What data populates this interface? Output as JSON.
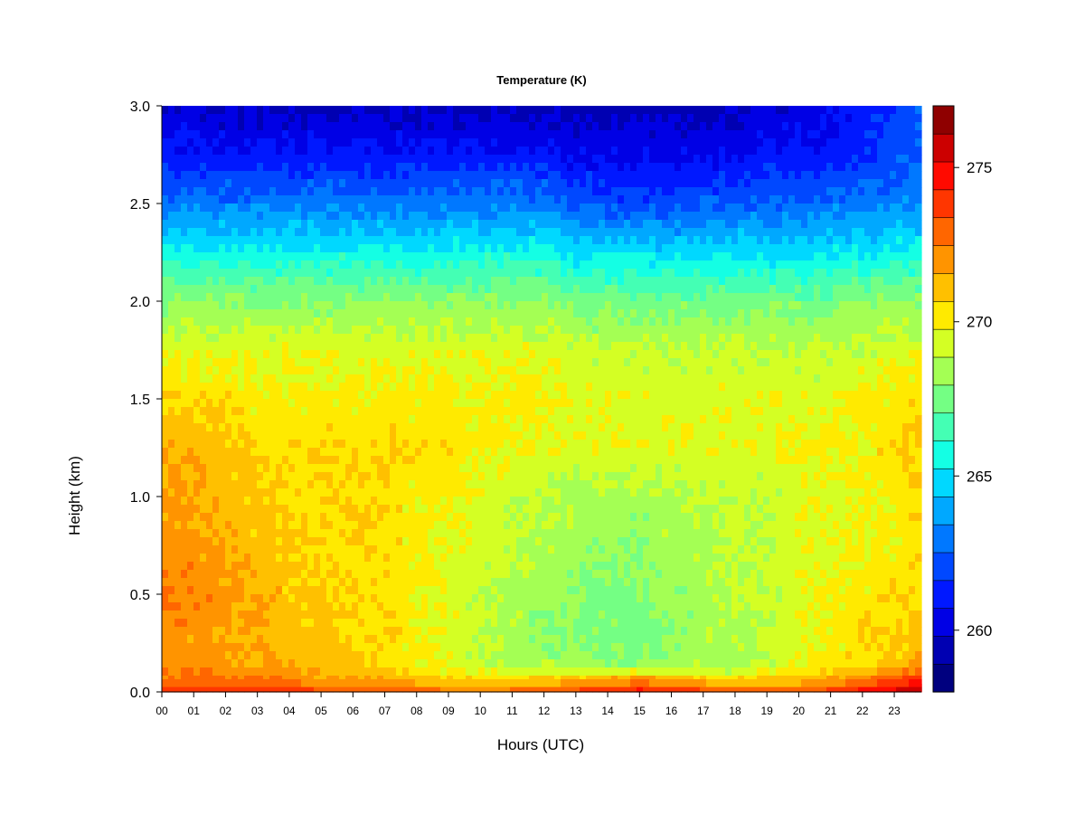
{
  "chart_data": {
    "type": "heatmap",
    "title": "Temperature (K)",
    "xlabel": "Hours (UTC)",
    "ylabel": "Height (km)",
    "x_ticks": [
      "00",
      "01",
      "02",
      "03",
      "04",
      "05",
      "06",
      "07",
      "08",
      "09",
      "10",
      "11",
      "12",
      "13",
      "14",
      "15",
      "16",
      "17",
      "18",
      "19",
      "20",
      "21",
      "22",
      "23"
    ],
    "xlim": [
      0,
      23.85
    ],
    "y_ticks": [
      "0.0",
      "0.5",
      "1.0",
      "1.5",
      "2.0",
      "2.5",
      "3.0"
    ],
    "ylim": [
      0,
      3
    ],
    "colorbar": {
      "ticks": [
        "260",
        "265",
        "270",
        "275"
      ],
      "tick_values": [
        260,
        265,
        270,
        275
      ],
      "range": [
        258,
        277
      ],
      "colors": [
        "#00007f",
        "#0000b2",
        "#0000e5",
        "#0018ff",
        "#0048ff",
        "#0078ff",
        "#00a8ff",
        "#00d8ff",
        "#14ffe4",
        "#44ffb4",
        "#74ff84",
        "#a4ff54",
        "#d4ff24",
        "#ffea00",
        "#ffc000",
        "#ff9400",
        "#ff6600",
        "#ff3600",
        "#ff0a00",
        "#cc0000",
        "#8f0000"
      ]
    },
    "times": [
      0,
      1,
      2,
      3,
      4,
      5,
      6,
      7,
      8,
      9,
      10,
      11,
      12,
      13,
      14,
      15,
      16,
      17,
      18,
      19,
      20,
      21,
      22,
      23,
      23.85
    ],
    "heights": [
      0,
      0.03,
      0.08,
      0.15,
      0.3,
      0.5,
      0.75,
      1.0,
      1.25,
      1.5,
      1.75,
      2.0,
      2.25,
      2.5,
      2.75,
      3.0
    ],
    "values": [
      [
        275.5,
        275.5,
        275.5,
        275.5,
        275.0,
        275.0,
        274.5,
        274.0,
        274.5,
        274.0,
        274.0,
        274.5,
        274.5,
        275.0,
        275.5,
        276.0,
        275.5,
        275.0,
        275.0,
        274.5,
        274.5,
        275.5,
        276.0,
        276.5,
        276.5
      ],
      [
        273.5,
        273.5,
        273.5,
        273.0,
        273.0,
        272.5,
        272.5,
        272.0,
        272.0,
        271.5,
        271.5,
        271.5,
        272.0,
        272.5,
        273.0,
        273.5,
        273.0,
        272.5,
        272.0,
        272.0,
        272.0,
        272.5,
        273.5,
        274.5,
        275.0
      ],
      [
        272.5,
        272.5,
        272.5,
        272.0,
        272.0,
        271.5,
        271.5,
        271.0,
        270.5,
        270.0,
        270.0,
        269.5,
        270.0,
        270.0,
        270.0,
        270.5,
        270.0,
        269.5,
        269.5,
        270.0,
        270.5,
        271.0,
        271.5,
        272.5,
        273.5
      ],
      [
        272.0,
        272.0,
        272.0,
        271.5,
        271.5,
        271.0,
        271.0,
        270.5,
        270.0,
        269.5,
        269.0,
        268.5,
        268.5,
        268.0,
        268.0,
        268.0,
        268.0,
        268.5,
        268.5,
        269.0,
        269.5,
        270.0,
        270.5,
        271.0,
        272.0
      ],
      [
        272.0,
        272.0,
        271.5,
        271.5,
        271.0,
        271.0,
        270.5,
        270.5,
        270.0,
        269.5,
        269.0,
        268.5,
        268.0,
        268.0,
        267.5,
        267.5,
        268.0,
        268.5,
        268.5,
        269.0,
        269.5,
        270.0,
        270.5,
        270.5,
        271.0
      ],
      [
        272.5,
        272.5,
        272.0,
        271.5,
        271.0,
        271.0,
        270.5,
        270.5,
        270.0,
        269.5,
        269.0,
        268.5,
        268.5,
        268.0,
        267.5,
        268.0,
        268.0,
        268.5,
        269.0,
        269.0,
        269.5,
        270.0,
        270.0,
        270.5,
        270.5
      ],
      [
        272.0,
        272.0,
        271.5,
        271.0,
        271.0,
        270.5,
        270.5,
        270.5,
        270.0,
        269.5,
        269.5,
        269.0,
        268.5,
        268.5,
        268.0,
        268.0,
        268.5,
        268.5,
        269.0,
        269.0,
        269.5,
        269.5,
        270.0,
        270.0,
        270.5
      ],
      [
        272.0,
        271.5,
        271.0,
        271.0,
        270.5,
        270.5,
        270.5,
        270.5,
        270.0,
        270.0,
        269.5,
        269.0,
        269.0,
        268.5,
        268.5,
        268.5,
        268.5,
        269.0,
        269.0,
        269.0,
        269.5,
        269.5,
        270.0,
        270.0,
        270.5
      ],
      [
        271.5,
        271.5,
        271.0,
        270.5,
        270.5,
        270.5,
        270.5,
        270.5,
        270.5,
        270.5,
        270.0,
        270.0,
        269.5,
        269.5,
        269.5,
        269.5,
        269.5,
        269.5,
        269.5,
        269.5,
        270.0,
        270.0,
        270.0,
        270.5,
        271.0
      ],
      [
        270.5,
        270.5,
        270.5,
        270.0,
        270.0,
        270.0,
        270.0,
        270.0,
        270.0,
        270.0,
        270.0,
        270.0,
        270.0,
        269.5,
        269.5,
        269.5,
        269.5,
        269.5,
        269.5,
        269.5,
        269.5,
        269.5,
        270.0,
        270.0,
        270.5
      ],
      [
        269.5,
        269.5,
        269.5,
        269.5,
        269.5,
        269.5,
        269.5,
        269.5,
        269.5,
        269.5,
        269.5,
        269.5,
        269.5,
        269.0,
        269.0,
        269.0,
        269.0,
        269.0,
        269.0,
        269.0,
        269.0,
        269.0,
        269.0,
        269.5,
        269.5
      ],
      [
        268.0,
        268.0,
        268.0,
        268.0,
        268.0,
        268.0,
        268.0,
        268.0,
        268.0,
        268.0,
        268.0,
        268.0,
        268.0,
        267.5,
        267.5,
        267.5,
        267.5,
        267.5,
        267.5,
        267.5,
        267.5,
        267.5,
        268.0,
        268.0,
        268.0
      ],
      [
        265.5,
        265.5,
        265.5,
        265.5,
        265.5,
        265.5,
        265.5,
        265.5,
        265.5,
        265.5,
        265.5,
        265.5,
        265.5,
        265.0,
        265.0,
        265.0,
        265.0,
        265.0,
        265.0,
        265.0,
        265.0,
        265.0,
        265.0,
        265.5,
        265.5
      ],
      [
        263.0,
        263.0,
        263.0,
        263.0,
        263.0,
        263.0,
        263.0,
        263.0,
        263.0,
        263.0,
        263.0,
        263.0,
        263.0,
        262.5,
        262.0,
        262.0,
        262.0,
        262.5,
        262.5,
        262.5,
        262.5,
        263.0,
        263.0,
        263.0,
        263.5
      ],
      [
        261.0,
        261.0,
        261.0,
        261.0,
        261.0,
        261.0,
        261.0,
        261.0,
        261.0,
        261.0,
        261.0,
        261.0,
        261.0,
        260.5,
        260.5,
        260.5,
        260.5,
        260.5,
        260.5,
        261.0,
        261.0,
        261.0,
        261.5,
        262.0,
        262.5
      ],
      [
        260.0,
        260.0,
        259.5,
        259.5,
        259.5,
        259.5,
        259.5,
        259.5,
        259.5,
        259.5,
        259.5,
        259.5,
        259.5,
        259.5,
        259.5,
        259.5,
        259.5,
        259.5,
        259.5,
        260.0,
        260.0,
        260.5,
        261.0,
        261.5,
        262.5
      ]
    ]
  }
}
